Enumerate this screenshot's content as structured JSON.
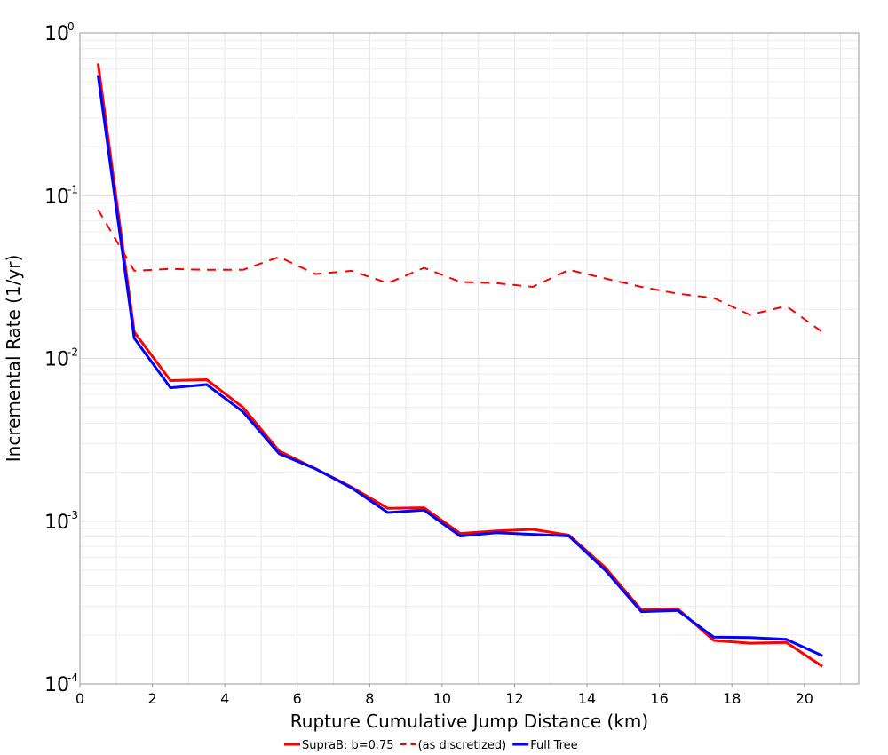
{
  "chart_data": {
    "type": "line",
    "title": "",
    "xlabel": "Rupture Cumulative Jump Distance (km)",
    "ylabel": "Incremental Rate (1/yr)",
    "xlim": [
      0,
      21.5
    ],
    "ylim": [
      0.0001,
      1
    ],
    "yscale": "log",
    "grid": true,
    "legend_position": "bottom",
    "x_ticks": [
      "0",
      "2",
      "4",
      "6",
      "8",
      "10",
      "12",
      "14",
      "16",
      "18",
      "20"
    ],
    "y_ticks": [
      {
        "base": "10",
        "exp": "-4"
      },
      {
        "base": "10",
        "exp": "-3"
      },
      {
        "base": "10",
        "exp": "-2"
      },
      {
        "base": "10",
        "exp": "-1"
      },
      {
        "base": "10",
        "exp": "0"
      }
    ],
    "x": [
      0.5,
      1.5,
      2.5,
      3.5,
      4.5,
      5.5,
      6.5,
      7.5,
      8.5,
      9.5,
      10.5,
      11.5,
      12.5,
      13.5,
      14.5,
      15.5,
      16.5,
      17.5,
      18.5,
      19.5,
      20.5
    ],
    "series": [
      {
        "name": "SupraB: b=0.75",
        "color": "#ff0000",
        "style": "solid",
        "values": [
          0.65,
          0.0145,
          0.0073,
          0.0074,
          0.005,
          0.0027,
          0.0021,
          0.00162,
          0.0012,
          0.00121,
          0.00084,
          0.00087,
          0.00089,
          0.00082,
          0.00052,
          0.000285,
          0.00029,
          0.000185,
          0.000178,
          0.00018,
          0.000128
        ]
      },
      {
        "name": "(as discretized)",
        "color": "#ff0000",
        "style": "dashed",
        "values": [
          0.082,
          0.0345,
          0.0355,
          0.035,
          0.035,
          0.042,
          0.033,
          0.0345,
          0.029,
          0.036,
          0.0295,
          0.029,
          0.0275,
          0.035,
          0.031,
          0.0275,
          0.025,
          0.0235,
          0.0185,
          0.021,
          0.0145
        ]
      },
      {
        "name": "Full Tree",
        "color": "#0000ff",
        "style": "solid",
        "values": [
          0.55,
          0.0133,
          0.0066,
          0.0069,
          0.0047,
          0.0026,
          0.0021,
          0.0016,
          0.00113,
          0.00117,
          0.00081,
          0.00085,
          0.00083,
          0.00081,
          0.0005,
          0.000278,
          0.000283,
          0.000194,
          0.000193,
          0.000188,
          0.000149
        ]
      }
    ]
  }
}
